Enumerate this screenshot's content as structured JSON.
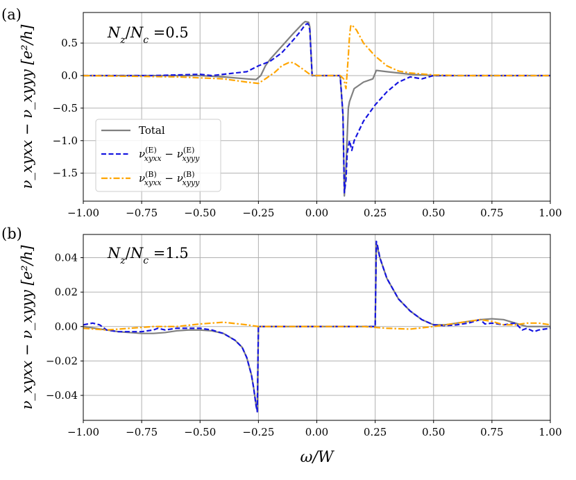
{
  "chart_data": [
    {
      "type": "line",
      "panel_label": "(a)",
      "annotation": "N_z/N_c =0.5",
      "annotation_parts": {
        "a": "N",
        "a_sub": "z",
        "slash": "/",
        "b": "N",
        "b_sub": "c",
        "eq": " =0.5"
      },
      "ylabel": "ν_xyxx − ν_xyyy [e²/h]",
      "xlabel": "",
      "xlim": [
        -1.0,
        1.0
      ],
      "ylim": [
        -1.93,
        0.97
      ],
      "xticks": [
        -1.0,
        -0.75,
        -0.5,
        -0.25,
        0.0,
        0.25,
        0.5,
        0.75,
        1.0
      ],
      "xtick_labels": [
        "−1.00",
        "−0.75",
        "−0.50",
        "−0.25",
        "0.00",
        "0.25",
        "0.50",
        "0.75",
        "1.00"
      ],
      "yticks": [
        -1.5,
        -1.0,
        -0.5,
        0.0,
        0.5
      ],
      "ytick_labels": [
        "−1.5",
        "−1.0",
        "−0.5",
        "0.0",
        "0.5"
      ],
      "grid": true,
      "legend_position": "lower-left",
      "series": [
        {
          "name": "Total",
          "color": "#808080",
          "style": "solid",
          "x": [
            -1.0,
            -0.7,
            -0.5,
            -0.4,
            -0.3,
            -0.26,
            -0.24,
            -0.22,
            -0.2,
            -0.15,
            -0.1,
            -0.06,
            -0.05,
            -0.035,
            -0.03,
            -0.02,
            0.0,
            0.1,
            0.112,
            0.118,
            0.125,
            0.135,
            0.14,
            0.16,
            0.2,
            0.24,
            0.255,
            0.3,
            0.4,
            0.5,
            0.6,
            0.7,
            0.8,
            0.9,
            1.0
          ],
          "y": [
            0.0,
            0.0,
            0.0,
            -0.02,
            -0.05,
            -0.06,
            0.0,
            0.15,
            0.25,
            0.45,
            0.65,
            0.8,
            0.83,
            0.82,
            0.75,
            0.0,
            0.0,
            0.0,
            -0.6,
            -1.85,
            -1.4,
            -0.5,
            -0.4,
            -0.2,
            -0.1,
            -0.05,
            0.08,
            0.06,
            0.02,
            0.0,
            0.0,
            0.0,
            0.0,
            0.0,
            0.0
          ]
        },
        {
          "name": "ν(E)_xyxx − ν(E)_xyyy",
          "color": "#1515e0",
          "style": "dashed",
          "x": [
            -1.0,
            -0.7,
            -0.5,
            -0.45,
            -0.4,
            -0.3,
            -0.25,
            -0.2,
            -0.15,
            -0.1,
            -0.07,
            -0.05,
            -0.04,
            -0.035,
            -0.03,
            -0.02,
            0.0,
            0.1,
            0.112,
            0.118,
            0.125,
            0.13,
            0.14,
            0.15,
            0.16,
            0.2,
            0.25,
            0.3,
            0.35,
            0.4,
            0.45,
            0.5,
            0.6,
            0.7,
            0.8,
            0.9,
            1.0
          ],
          "y": [
            0.0,
            0.0,
            0.02,
            0.0,
            0.02,
            0.06,
            0.15,
            0.22,
            0.35,
            0.55,
            0.68,
            0.78,
            0.8,
            0.78,
            0.7,
            0.0,
            0.0,
            0.0,
            -0.6,
            -1.8,
            -1.6,
            -1.2,
            -1.0,
            -1.15,
            -1.0,
            -0.7,
            -0.45,
            -0.25,
            -0.1,
            -0.02,
            -0.05,
            0.0,
            0.0,
            0.0,
            0.0,
            0.0,
            0.0
          ]
        },
        {
          "name": "ν(B)_xyxx − ν(B)_xyyy",
          "color": "#ffa500",
          "style": "dashdot",
          "x": [
            -1.0,
            -0.6,
            -0.4,
            -0.3,
            -0.25,
            -0.22,
            -0.18,
            -0.15,
            -0.12,
            -0.1,
            -0.06,
            -0.03,
            -0.01,
            0.0,
            0.05,
            0.1,
            0.115,
            0.125,
            0.135,
            0.14,
            0.145,
            0.15,
            0.17,
            0.2,
            0.25,
            0.3,
            0.35,
            0.4,
            0.5,
            0.6,
            0.7,
            0.8,
            0.9,
            1.0
          ],
          "y": [
            0.0,
            -0.02,
            -0.05,
            -0.1,
            -0.12,
            -0.05,
            0.05,
            0.15,
            0.2,
            0.2,
            0.1,
            0.02,
            0.0,
            0.0,
            0.0,
            0.0,
            -0.05,
            -0.2,
            0.3,
            0.6,
            0.76,
            0.78,
            0.7,
            0.5,
            0.3,
            0.15,
            0.07,
            0.04,
            0.01,
            0.0,
            0.0,
            0.0,
            0.0,
            0.0
          ]
        }
      ],
      "legend": [
        {
          "kind": "plain",
          "text": "Total"
        },
        {
          "kind": "nu",
          "sup": "(E)",
          "t1": "xyxx",
          "t2": "xyyy"
        },
        {
          "kind": "nu",
          "sup": "(B)",
          "t1": "xyxx",
          "t2": "xyyy"
        }
      ]
    },
    {
      "type": "line",
      "panel_label": "(b)",
      "annotation": "N_z/N_c =1.5",
      "annotation_parts": {
        "a": "N",
        "a_sub": "z",
        "slash": "/",
        "b": "N",
        "b_sub": "c",
        "eq": " =1.5"
      },
      "ylabel": "ν_xyxx − ν_xyyy [e²/h]",
      "xlabel": "ω/W",
      "xlim": [
        -1.0,
        1.0
      ],
      "ylim": [
        -0.0545,
        0.0535
      ],
      "xticks": [
        -1.0,
        -0.75,
        -0.5,
        -0.25,
        0.0,
        0.25,
        0.5,
        0.75,
        1.0
      ],
      "xtick_labels": [
        "−1.00",
        "−0.75",
        "−0.50",
        "−0.25",
        "0.00",
        "0.25",
        "0.50",
        "0.75",
        "1.00"
      ],
      "yticks": [
        -0.04,
        -0.02,
        0.0,
        0.02,
        0.04
      ],
      "ytick_labels": [
        "−0.04",
        "−0.02",
        "0.00",
        "0.02",
        "0.04"
      ],
      "grid": true,
      "series": [
        {
          "name": "Total",
          "color": "#808080",
          "style": "solid",
          "x": [
            -1.0,
            -0.95,
            -0.9,
            -0.85,
            -0.8,
            -0.75,
            -0.7,
            -0.65,
            -0.6,
            -0.55,
            -0.5,
            -0.45,
            -0.4,
            -0.35,
            -0.32,
            -0.3,
            -0.28,
            -0.27,
            -0.26,
            -0.255,
            -0.25,
            -0.2,
            0.0,
            0.2,
            0.25,
            0.255,
            0.26,
            0.27,
            0.3,
            0.35,
            0.4,
            0.45,
            0.5,
            0.55,
            0.6,
            0.65,
            0.7,
            0.75,
            0.8,
            0.85,
            0.9,
            0.95,
            1.0
          ],
          "y": [
            0.0,
            -0.001,
            -0.002,
            -0.003,
            -0.0035,
            -0.004,
            -0.004,
            -0.0035,
            -0.0025,
            -0.002,
            -0.002,
            -0.0025,
            -0.004,
            -0.008,
            -0.012,
            -0.018,
            -0.028,
            -0.036,
            -0.046,
            -0.049,
            0.0,
            0.0,
            0.0,
            0.0,
            0.0,
            0.048,
            0.046,
            0.04,
            0.028,
            0.016,
            0.009,
            0.004,
            0.001,
            0.001,
            0.002,
            0.003,
            0.004,
            0.0045,
            0.004,
            0.002,
            0.0,
            0.0,
            0.0
          ]
        },
        {
          "name": "ν(E)_xyxx − ν(E)_xyyy",
          "color": "#1515e0",
          "style": "dashed",
          "x": [
            -1.0,
            -0.96,
            -0.93,
            -0.9,
            -0.85,
            -0.8,
            -0.75,
            -0.7,
            -0.68,
            -0.65,
            -0.6,
            -0.55,
            -0.5,
            -0.45,
            -0.4,
            -0.35,
            -0.32,
            -0.3,
            -0.28,
            -0.27,
            -0.26,
            -0.255,
            -0.25,
            -0.2,
            0.0,
            0.2,
            0.25,
            0.255,
            0.26,
            0.27,
            0.3,
            0.35,
            0.4,
            0.45,
            0.5,
            0.55,
            0.6,
            0.65,
            0.7,
            0.72,
            0.75,
            0.8,
            0.85,
            0.88,
            0.9,
            0.93,
            0.95,
            1.0
          ],
          "y": [
            0.001,
            0.002,
            0.001,
            -0.002,
            -0.003,
            -0.003,
            -0.003,
            -0.002,
            -0.001,
            -0.002,
            -0.001,
            -0.001,
            -0.001,
            -0.002,
            -0.004,
            -0.008,
            -0.012,
            -0.018,
            -0.028,
            -0.036,
            -0.046,
            -0.0495,
            0.0,
            0.0,
            0.0,
            0.0,
            0.0,
            0.0495,
            0.047,
            0.04,
            0.028,
            0.016,
            0.009,
            0.004,
            0.001,
            0.0005,
            0.001,
            0.002,
            0.004,
            0.0015,
            0.002,
            0.001,
            0.002,
            -0.002,
            -0.001,
            -0.003,
            -0.002,
            -0.001
          ]
        },
        {
          "name": "ν(B)_xyxx − ν(B)_xyyy",
          "color": "#ffa500",
          "style": "dashdot",
          "x": [
            -1.0,
            -0.9,
            -0.8,
            -0.7,
            -0.6,
            -0.5,
            -0.4,
            -0.3,
            -0.25,
            -0.2,
            0.0,
            0.2,
            0.3,
            0.4,
            0.5,
            0.6,
            0.7,
            0.75,
            0.8,
            0.85,
            0.9,
            0.95,
            1.0
          ],
          "y": [
            -0.001,
            -0.002,
            -0.001,
            0.0,
            0.0,
            0.0015,
            0.0025,
            0.001,
            0.0,
            0.0,
            0.0,
            0.0,
            -0.001,
            -0.0015,
            0.0,
            0.002,
            0.004,
            0.003,
            0.001,
            0.001,
            0.002,
            0.002,
            0.001
          ]
        }
      ]
    }
  ]
}
